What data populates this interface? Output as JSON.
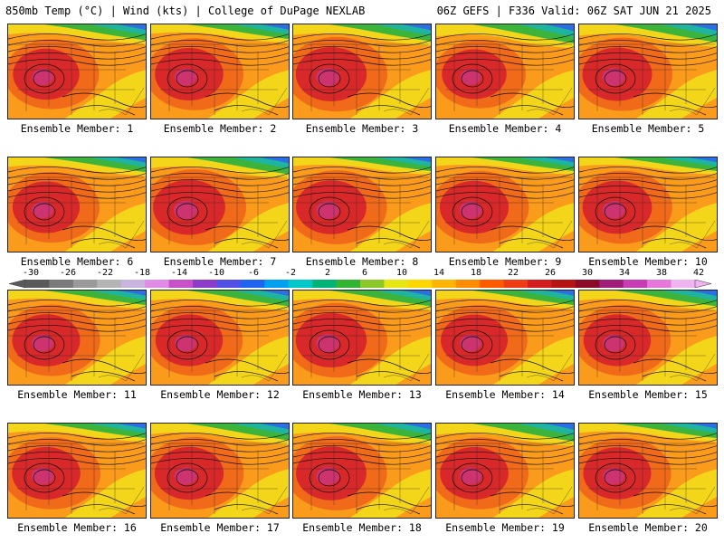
{
  "header": {
    "left_title": "850mb Temp (°C) | Wind (kts) | College of DuPage NEXLAB",
    "right_title": "06Z GEFS | F336 Valid: 06Z SAT JUN 21 2025"
  },
  "panels": [
    {
      "label": "Ensemble Member: 1",
      "heat": 0.62,
      "cool": 0.4
    },
    {
      "label": "Ensemble Member: 2",
      "heat": 0.7,
      "cool": 0.35
    },
    {
      "label": "Ensemble Member: 3",
      "heat": 0.8,
      "cool": 0.45
    },
    {
      "label": "Ensemble Member: 4",
      "heat": 0.55,
      "cool": 0.55
    },
    {
      "label": "Ensemble Member: 5",
      "heat": 0.75,
      "cool": 0.5
    },
    {
      "label": "Ensemble Member: 6",
      "heat": 0.65,
      "cool": 0.35
    },
    {
      "label": "Ensemble Member: 7",
      "heat": 0.85,
      "cool": 0.45
    },
    {
      "label": "Ensemble Member: 8",
      "heat": 0.78,
      "cool": 0.3
    },
    {
      "label": "Ensemble Member: 9",
      "heat": 0.72,
      "cool": 0.3
    },
    {
      "label": "Ensemble Member: 10",
      "heat": 0.74,
      "cool": 0.3
    },
    {
      "label": "Ensemble Member: 11",
      "heat": 0.68,
      "cool": 0.35
    },
    {
      "label": "Ensemble Member: 12",
      "heat": 0.66,
      "cool": 0.4
    },
    {
      "label": "Ensemble Member: 13",
      "heat": 0.8,
      "cool": 0.4
    },
    {
      "label": "Ensemble Member: 14",
      "heat": 0.64,
      "cool": 0.35
    },
    {
      "label": "Ensemble Member: 15",
      "heat": 0.66,
      "cool": 0.4
    },
    {
      "label": "Ensemble Member: 16",
      "heat": 0.7,
      "cool": 0.35
    },
    {
      "label": "Ensemble Member: 17",
      "heat": 0.72,
      "cool": 0.45
    },
    {
      "label": "Ensemble Member: 18",
      "heat": 0.78,
      "cool": 0.45
    },
    {
      "label": "Ensemble Member: 19",
      "heat": 0.7,
      "cool": 0.5
    },
    {
      "label": "Ensemble Member: 20",
      "heat": 0.68,
      "cool": 0.35
    }
  ],
  "colorbar": {
    "ticks": [
      "-30",
      "-26",
      "-22",
      "-18",
      "-14",
      "-10",
      "-6",
      "-2",
      "2",
      "6",
      "10",
      "14",
      "18",
      "22",
      "26",
      "30",
      "34",
      "38",
      "42"
    ],
    "colors": [
      "#5a5a5a",
      "#7a7a7a",
      "#9a9a9a",
      "#b4b4b4",
      "#c8b4dc",
      "#e08ce6",
      "#c850c8",
      "#8c3cc8",
      "#5050e6",
      "#1e64f0",
      "#00a0f0",
      "#00c8c8",
      "#00b478",
      "#32b432",
      "#8cc828",
      "#e6e614",
      "#ffd700",
      "#ffb400",
      "#ff8c00",
      "#ff5a00",
      "#f03c14",
      "#d21e1e",
      "#b41414",
      "#8c0a28",
      "#a01e78",
      "#c83cb4",
      "#e678dc",
      "#f0b4f0"
    ]
  },
  "colors": {
    "hot": "#d8282a",
    "warm": "#f06a1a",
    "orange": "#fb9b1b",
    "yellow": "#f3d61a",
    "green": "#3cb43c",
    "teal": "#1eb4a0",
    "blue": "#2c6ee6",
    "magenta": "#c43ca8"
  }
}
